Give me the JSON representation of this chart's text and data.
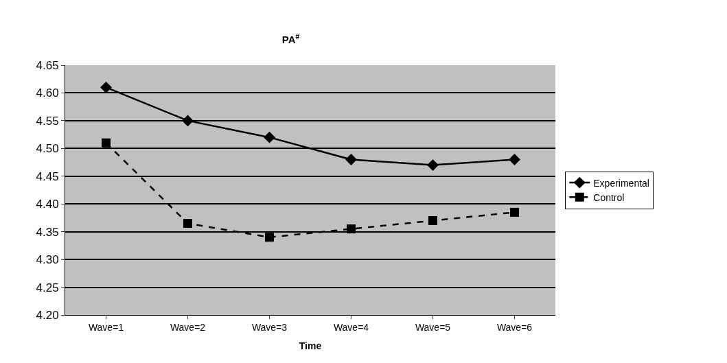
{
  "chart_data": {
    "type": "line",
    "title": "PA$^{#}$",
    "xlabel": "Time",
    "categories": [
      "Wave=1",
      "Wave=2",
      "Wave=3",
      "Wave=4",
      "Wave=5",
      "Wave=6"
    ],
    "series": [
      {
        "name": "Experimental",
        "color": "#000000",
        "values": [
          4.61,
          4.55,
          4.52,
          4.48,
          4.47,
          4.48
        ],
        "marker": "diamond",
        "line_style": "solid"
      },
      {
        "name": "Control",
        "color": "#000000",
        "values": [
          4.51,
          4.365,
          4.34,
          4.355,
          4.37,
          4.385
        ],
        "marker": "square",
        "line_style": "dashed"
      }
    ],
    "ylim": [
      4.2,
      4.65
    ],
    "yticks": [
      {
        "value": 4.2,
        "label": "4.20"
      },
      {
        "value": 4.25,
        "label": "4.25"
      },
      {
        "value": 4.3,
        "label": "4.30"
      },
      {
        "value": 4.35,
        "label": "4.35"
      },
      {
        "value": 4.4,
        "label": "4.40"
      },
      {
        "value": 4.45,
        "label": "4.45"
      },
      {
        "value": 4.5,
        "label": "4.50"
      },
      {
        "value": 4.55,
        "label": "4.55"
      },
      {
        "value": 4.6,
        "label": "4.60"
      },
      {
        "value": 4.65,
        "label": "4.65"
      }
    ],
    "grid": "y",
    "legend": "right"
  }
}
